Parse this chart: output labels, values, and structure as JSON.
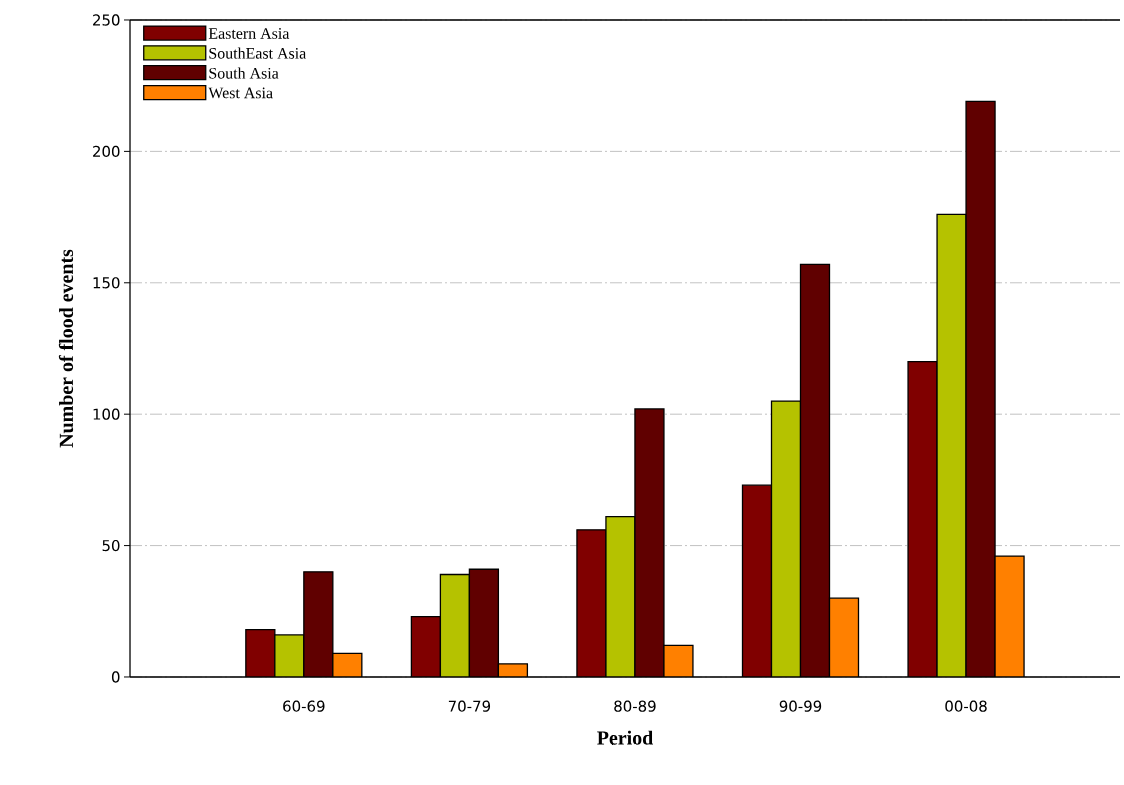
{
  "chart_data": {
    "type": "bar",
    "xlabel": "Period",
    "ylabel": "Number of flood events",
    "categories": [
      "60-69",
      "70-79",
      "80-89",
      "90-99",
      "00-08"
    ],
    "series": [
      {
        "name": "Eastern Asia",
        "color": "#800000",
        "values": [
          18,
          23,
          56,
          73,
          120
        ]
      },
      {
        "name": "SouthEast Asia",
        "color": "#b5c200",
        "values": [
          16,
          39,
          61,
          105,
          176
        ]
      },
      {
        "name": "South Asia",
        "color": "#600000",
        "values": [
          40,
          41,
          102,
          157,
          219
        ]
      },
      {
        "name": "West Asia",
        "color": "#ff8000",
        "values": [
          9,
          5,
          12,
          30,
          46
        ]
      }
    ],
    "ylim": [
      0,
      250
    ],
    "yticks": [
      0,
      50,
      100,
      150,
      200,
      250
    ],
    "grid": "y",
    "legend": "top left"
  }
}
